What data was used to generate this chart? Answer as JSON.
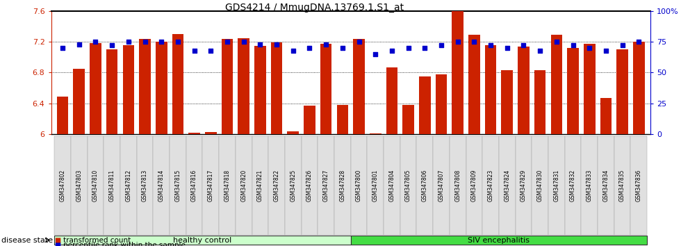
{
  "title": "GDS4214 / MmugDNA.13769.1.S1_at",
  "samples": [
    "GSM347802",
    "GSM347803",
    "GSM347810",
    "GSM347811",
    "GSM347812",
    "GSM347813",
    "GSM347814",
    "GSM347815",
    "GSM347816",
    "GSM347817",
    "GSM347818",
    "GSM347820",
    "GSM347821",
    "GSM347822",
    "GSM347825",
    "GSM347826",
    "GSM347827",
    "GSM347828",
    "GSM347800",
    "GSM347801",
    "GSM347804",
    "GSM347805",
    "GSM347806",
    "GSM347807",
    "GSM347808",
    "GSM347809",
    "GSM347823",
    "GSM347824",
    "GSM347829",
    "GSM347830",
    "GSM347831",
    "GSM347832",
    "GSM347833",
    "GSM347834",
    "GSM347835",
    "GSM347836"
  ],
  "bar_values": [
    6.49,
    6.85,
    7.18,
    7.1,
    7.16,
    7.24,
    7.2,
    7.3,
    6.02,
    6.03,
    7.24,
    7.25,
    7.15,
    7.19,
    6.04,
    6.37,
    7.17,
    6.38,
    7.24,
    6.01,
    6.87,
    6.38,
    6.75,
    6.78,
    7.6,
    7.29,
    7.16,
    6.83,
    7.14,
    6.83,
    7.29,
    7.12,
    7.17,
    6.47,
    7.1,
    7.2
  ],
  "dot_values": [
    70,
    73,
    75,
    72,
    75,
    75,
    75,
    75,
    68,
    68,
    75,
    75,
    73,
    73,
    68,
    70,
    73,
    70,
    75,
    65,
    68,
    70,
    70,
    72,
    75,
    75,
    72,
    70,
    72,
    68,
    75,
    72,
    70,
    68,
    72,
    75
  ],
  "group_labels": [
    "healthy control",
    "SIV encephalitis"
  ],
  "healthy_color": "#CCFFCC",
  "siv_color": "#44DD44",
  "group_split": 18,
  "ylim_left": [
    6.0,
    7.6
  ],
  "yticks_left": [
    6.0,
    6.4,
    6.8,
    7.2,
    7.6
  ],
  "ytick_labels_left": [
    "6",
    "6.4",
    "6.8",
    "7.2",
    "7.6"
  ],
  "yticks_right": [
    0,
    25,
    50,
    75,
    100
  ],
  "ytick_labels_right": [
    "0",
    "25",
    "50",
    "75",
    "100%"
  ],
  "bar_color": "#CC2200",
  "dot_color": "#0000CC",
  "legend_labels": [
    "transformed count",
    "percentile rank within the sample"
  ],
  "disease_state_label": "disease state"
}
